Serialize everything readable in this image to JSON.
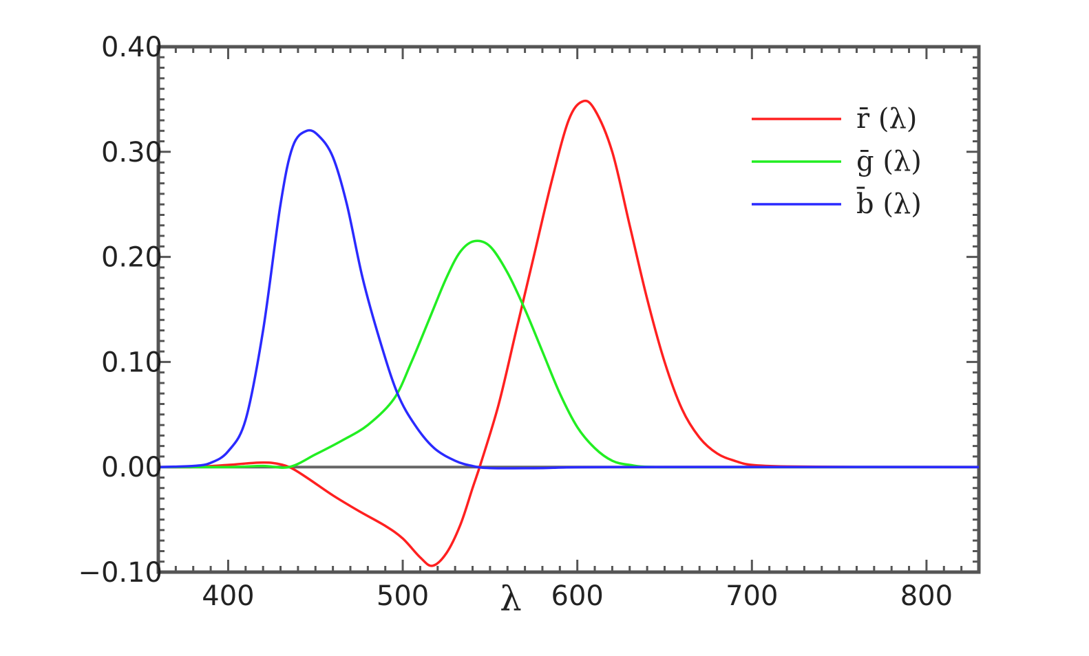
{
  "chart_data": {
    "type": "line",
    "title": "",
    "xlabel": "λ",
    "ylabel": "",
    "xlim": [
      360,
      830
    ],
    "ylim": [
      -0.1,
      0.4
    ],
    "grid": false,
    "legend_position": "top-right",
    "x_ticks": [
      "400",
      "500",
      "600",
      "700",
      "800"
    ],
    "y_ticks": [
      "−0.10",
      "0.00",
      "0.10",
      "0.20",
      "0.30",
      "0.40"
    ],
    "series": [
      {
        "name": "r̄ (λ)",
        "color": "#ff2020",
        "points": [
          [
            360,
            0
          ],
          [
            380,
            0
          ],
          [
            400,
            0.002
          ],
          [
            415,
            0.004
          ],
          [
            425,
            0.004
          ],
          [
            435,
            0
          ],
          [
            445,
            -0.01
          ],
          [
            460,
            -0.027
          ],
          [
            475,
            -0.042
          ],
          [
            490,
            -0.056
          ],
          [
            500,
            -0.068
          ],
          [
            510,
            -0.086
          ],
          [
            517,
            -0.094
          ],
          [
            525,
            -0.082
          ],
          [
            533,
            -0.055
          ],
          [
            540,
            -0.02
          ],
          [
            545,
            0.005
          ],
          [
            555,
            0.06
          ],
          [
            565,
            0.13
          ],
          [
            575,
            0.2
          ],
          [
            585,
            0.27
          ],
          [
            595,
            0.33
          ],
          [
            603,
            0.348
          ],
          [
            610,
            0.34
          ],
          [
            620,
            0.3
          ],
          [
            630,
            0.23
          ],
          [
            640,
            0.16
          ],
          [
            650,
            0.1
          ],
          [
            660,
            0.055
          ],
          [
            670,
            0.028
          ],
          [
            680,
            0.013
          ],
          [
            690,
            0.006
          ],
          [
            700,
            0.002
          ],
          [
            720,
            0.0005
          ],
          [
            760,
            0
          ],
          [
            830,
            0
          ]
        ]
      },
      {
        "name": "ḡ (λ)",
        "color": "#22ee22",
        "points": [
          [
            360,
            0
          ],
          [
            400,
            0
          ],
          [
            420,
            0.001
          ],
          [
            435,
            0
          ],
          [
            450,
            0.012
          ],
          [
            465,
            0.025
          ],
          [
            480,
            0.04
          ],
          [
            495,
            0.065
          ],
          [
            505,
            0.1
          ],
          [
            515,
            0.14
          ],
          [
            525,
            0.18
          ],
          [
            533,
            0.205
          ],
          [
            541,
            0.215
          ],
          [
            550,
            0.21
          ],
          [
            560,
            0.185
          ],
          [
            570,
            0.15
          ],
          [
            580,
            0.11
          ],
          [
            590,
            0.07
          ],
          [
            600,
            0.038
          ],
          [
            610,
            0.018
          ],
          [
            620,
            0.006
          ],
          [
            630,
            0.002
          ],
          [
            645,
            0
          ],
          [
            700,
            0
          ],
          [
            830,
            0
          ]
        ]
      },
      {
        "name": "b̄ (λ)",
        "color": "#2a2aff",
        "points": [
          [
            360,
            0
          ],
          [
            380,
            0.001
          ],
          [
            390,
            0.004
          ],
          [
            400,
            0.015
          ],
          [
            410,
            0.045
          ],
          [
            420,
            0.13
          ],
          [
            430,
            0.25
          ],
          [
            437,
            0.305
          ],
          [
            445,
            0.32
          ],
          [
            452,
            0.315
          ],
          [
            460,
            0.295
          ],
          [
            468,
            0.25
          ],
          [
            477,
            0.18
          ],
          [
            487,
            0.12
          ],
          [
            497,
            0.07
          ],
          [
            507,
            0.04
          ],
          [
            518,
            0.018
          ],
          [
            530,
            0.006
          ],
          [
            540,
            0.001
          ],
          [
            550,
            -0.001
          ],
          [
            580,
            -0.001
          ],
          [
            620,
            0
          ],
          [
            830,
            0
          ]
        ]
      }
    ]
  }
}
